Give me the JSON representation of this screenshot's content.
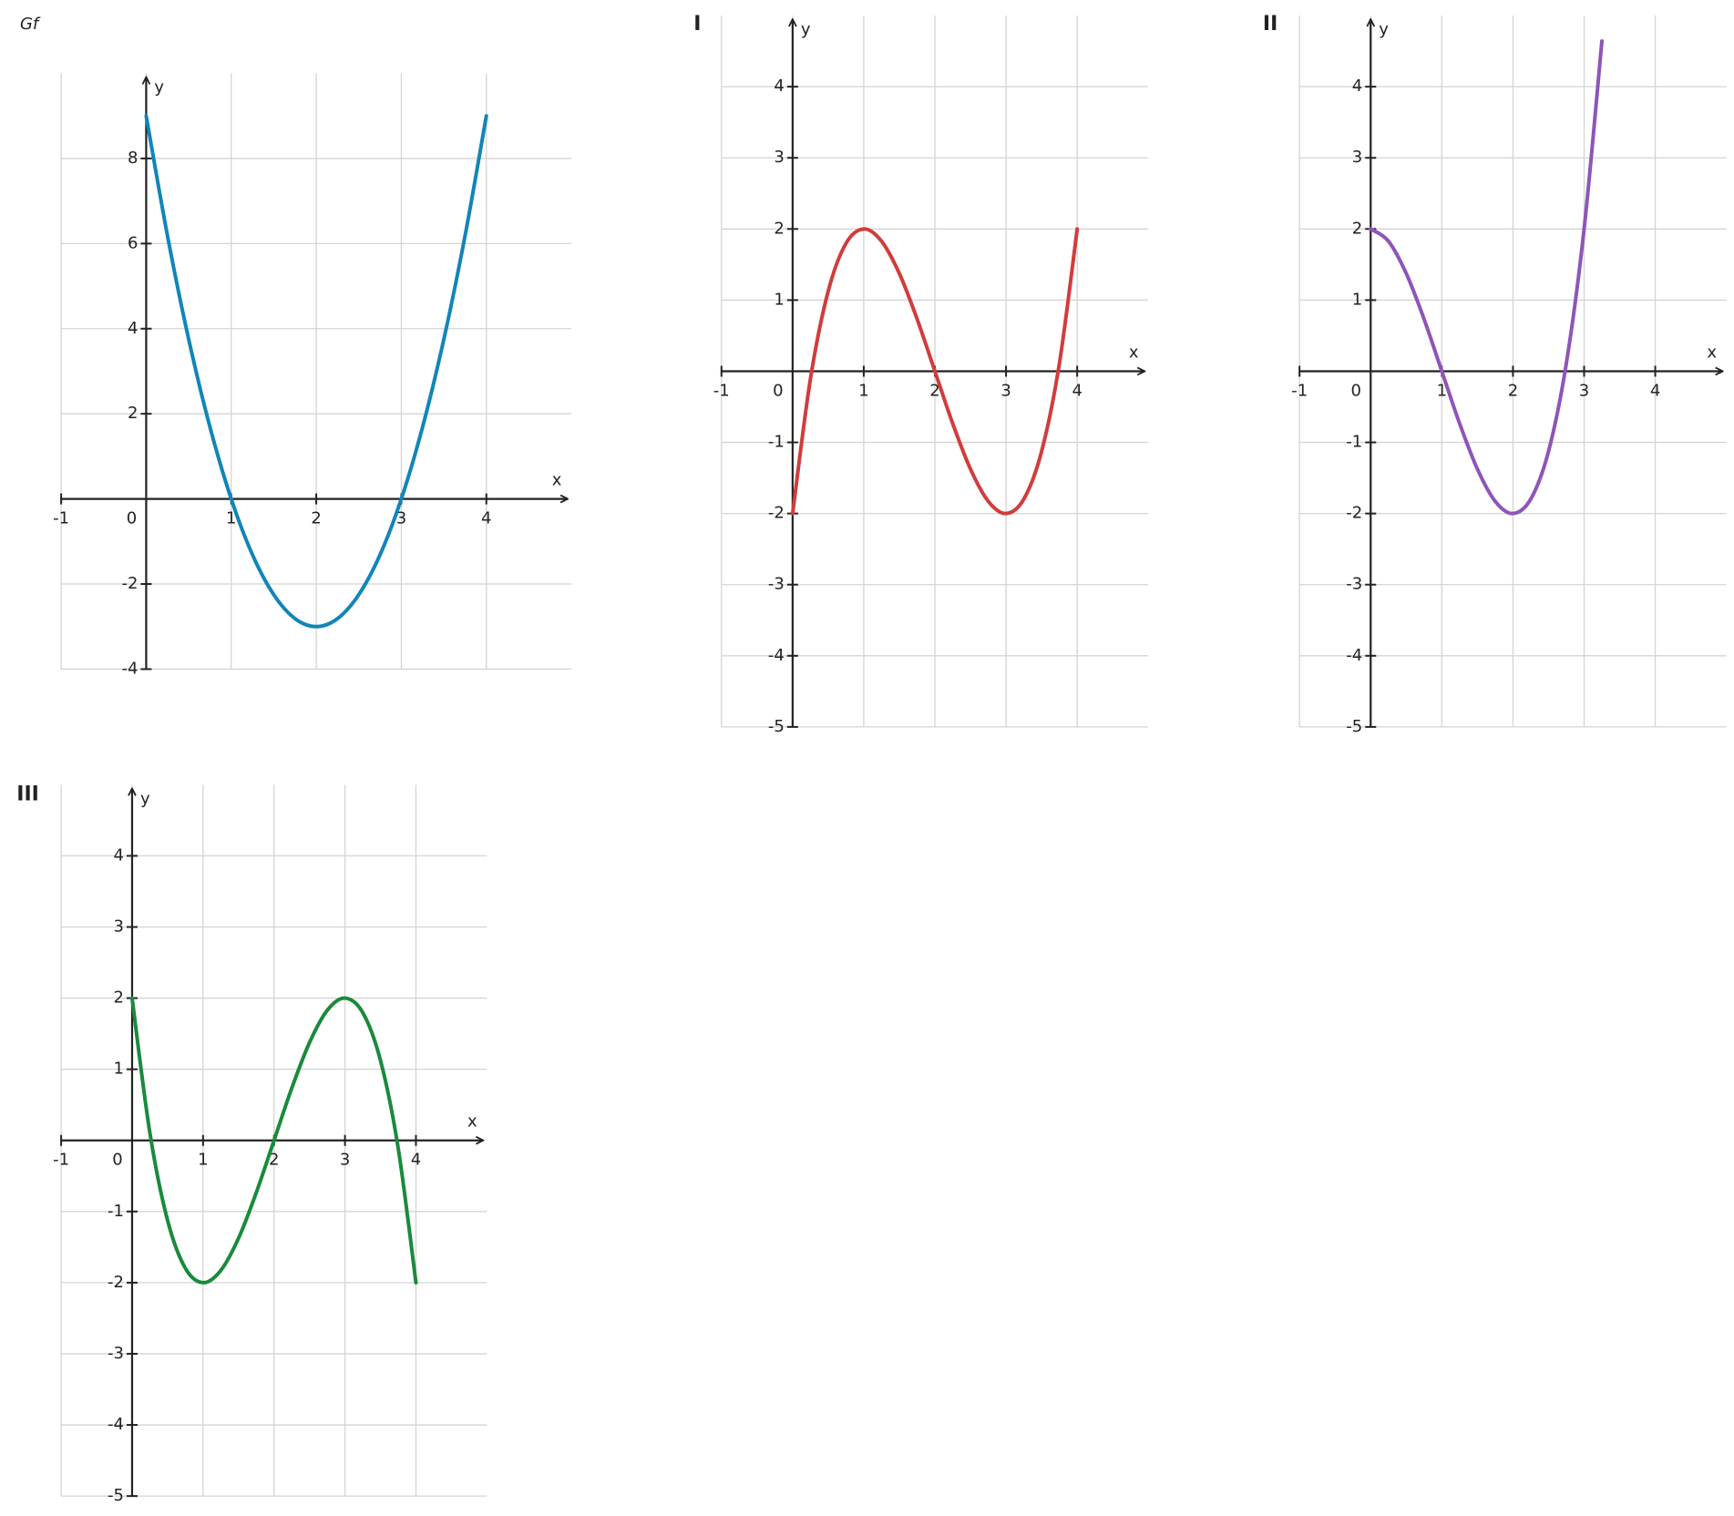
{
  "chart_data": [
    {
      "type": "line",
      "title": "Gf",
      "x_label": "x",
      "y_label": "y",
      "color": "#1185b9",
      "grid": true,
      "xlim": [
        -1,
        5
      ],
      "ylim": [
        -4,
        10
      ],
      "xticks": [
        -1,
        0,
        1,
        2,
        3,
        4
      ],
      "yticks": [
        -4,
        -2,
        2,
        4,
        6,
        8
      ],
      "x": [
        0,
        0.25,
        0.5,
        0.75,
        1,
        1.25,
        1.5,
        1.75,
        2,
        2.25,
        2.5,
        2.75,
        3,
        3.25,
        3.5,
        3.75,
        4
      ],
      "values": [
        9,
        6.1875,
        3.75,
        1.6875,
        0,
        -1.3125,
        -2.25,
        -2.8125,
        -3,
        -2.8125,
        -2.25,
        -1.3125,
        0,
        1.6875,
        3.75,
        6.1875,
        9
      ]
    },
    {
      "type": "line",
      "title": "I",
      "x_label": "x",
      "y_label": "y",
      "color": "#d23c3c",
      "grid": true,
      "xlim": [
        -1,
        5
      ],
      "ylim": [
        -5,
        5
      ],
      "xticks": [
        -1,
        0,
        1,
        2,
        3,
        4
      ],
      "yticks": [
        -5,
        -4,
        -3,
        -2,
        -1,
        1,
        2,
        3,
        4
      ],
      "x": [
        0,
        0.25,
        0.5,
        0.75,
        1,
        1.25,
        1.5,
        1.75,
        2,
        2.25,
        2.5,
        2.75,
        3,
        3.25,
        3.5,
        3.75,
        4
      ],
      "values": [
        -2,
        -0.109375,
        1.125,
        1.796875,
        2,
        1.828125,
        1.375,
        0.734375,
        0,
        -0.734375,
        -1.375,
        -1.828125,
        -2,
        -1.796875,
        -1.125,
        0.109375,
        2
      ]
    },
    {
      "type": "line",
      "title": "II",
      "x_label": "x",
      "y_label": "y",
      "color": "#8e55b8",
      "grid": true,
      "xlim": [
        -1,
        5
      ],
      "ylim": [
        -5,
        5
      ],
      "xticks": [
        -1,
        0,
        1,
        2,
        3,
        4
      ],
      "yticks": [
        -5,
        -4,
        -3,
        -2,
        -1,
        1,
        2,
        3,
        4
      ],
      "x": [
        0,
        0.25,
        0.5,
        0.75,
        1,
        1.25,
        1.5,
        1.75,
        2,
        2.25,
        2.5,
        2.75,
        3,
        3.25
      ],
      "values": [
        2,
        1.828125,
        1.375,
        0.734375,
        0,
        -0.734375,
        -1.375,
        -1.828125,
        -2,
        -1.796875,
        -1.125,
        0.109375,
        2,
        4.640625
      ]
    },
    {
      "type": "line",
      "title": "III",
      "x_label": "x",
      "y_label": "y",
      "color": "#1a8a3c",
      "grid": true,
      "xlim": [
        -1,
        5
      ],
      "ylim": [
        -5,
        5
      ],
      "xticks": [
        -1,
        0,
        1,
        2,
        3,
        4
      ],
      "yticks": [
        -5,
        -4,
        -3,
        -2,
        -1,
        1,
        2,
        3,
        4
      ],
      "x": [
        0,
        0.25,
        0.5,
        0.75,
        1,
        1.25,
        1.5,
        1.75,
        2,
        2.25,
        2.5,
        2.75,
        3,
        3.25,
        3.5,
        3.75,
        4
      ],
      "values": [
        2,
        0.109375,
        -1.125,
        -1.796875,
        -2,
        -1.828125,
        -1.375,
        -0.734375,
        0,
        0.734375,
        1.375,
        1.828125,
        2,
        1.796875,
        1.125,
        -0.109375,
        -2
      ]
    }
  ]
}
